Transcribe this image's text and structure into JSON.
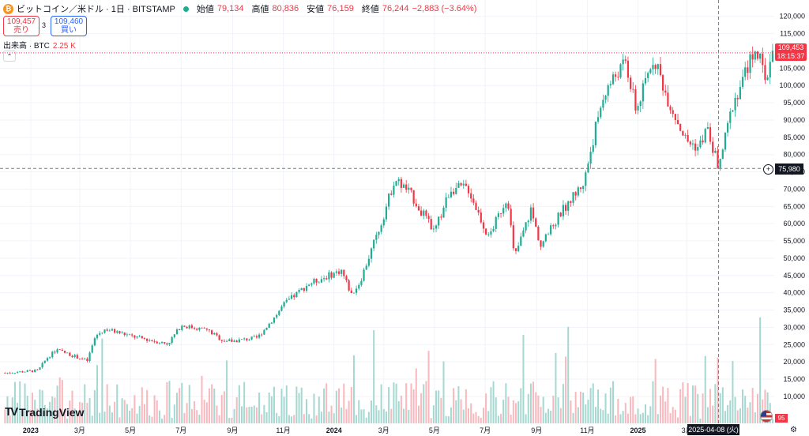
{
  "header": {
    "coin_icon": "bitcoin-icon",
    "coin_glyph": "₿",
    "title": "ビットコイン／米ドル · 1日 · BITSTAMP",
    "open_label": "始値",
    "open": "79,134",
    "high_label": "高値",
    "high": "80,836",
    "low_label": "安値",
    "low": "76,159",
    "close_label": "終値",
    "close": "76,244",
    "change": "−2,883 (−3.64%)"
  },
  "trade": {
    "sell_price": "109,457",
    "sell_label": "売り",
    "spread": "3",
    "buy_price": "109,460",
    "buy_label": "買い"
  },
  "volume_legend": {
    "label": "出来高 · BTC",
    "value": "2.25 K"
  },
  "collapse_glyph": "⌃",
  "logo": {
    "mark": "TV",
    "text": "TradingView"
  },
  "price_label": {
    "price": "109,453",
    "timer": "18:15:37"
  },
  "crosshair": {
    "price": "75,980",
    "date": "2025-04-08 (火)",
    "plus_glyph": "+"
  },
  "volume_badge": "95",
  "settings_glyph": "⚙",
  "chart_data": {
    "type": "candlestick",
    "y_ticks": [
      "120,000",
      "115,000",
      "110,000",
      "105,000",
      "100,000",
      "95,000",
      "90,000",
      "85,000",
      "80,000",
      "75,000",
      "70,000",
      "65,000",
      "60,000",
      "55,000",
      "50,000",
      "45,000",
      "40,000",
      "35,000",
      "30,000",
      "25,000",
      "20,000",
      "15,000",
      "10,000"
    ],
    "x_ticks": [
      "2023",
      "3月",
      "5月",
      "7月",
      "9月",
      "11月",
      "2024",
      "3月",
      "5月",
      "7月",
      "9月",
      "11月",
      "2025",
      "3月"
    ],
    "y_range": [
      7000,
      122000
    ],
    "series": [
      {
        "x": "2022-12",
        "close": 16800
      },
      {
        "x": "2023-01-10",
        "close": 17500
      },
      {
        "x": "2023-01-20",
        "close": 21000
      },
      {
        "x": "2023-02",
        "close": 23500
      },
      {
        "x": "2023-03-10",
        "close": 20300
      },
      {
        "x": "2023-03-20",
        "close": 27500
      },
      {
        "x": "2023-04",
        "close": 29500
      },
      {
        "x": "2023-05",
        "close": 27500
      },
      {
        "x": "2023-06-15",
        "close": 25200
      },
      {
        "x": "2023-07",
        "close": 30500
      },
      {
        "x": "2023-08",
        "close": 29300
      },
      {
        "x": "2023-08-20",
        "close": 26200
      },
      {
        "x": "2023-09",
        "close": 26000
      },
      {
        "x": "2023-10",
        "close": 27000
      },
      {
        "x": "2023-10-25",
        "close": 34000
      },
      {
        "x": "2023-11",
        "close": 36500
      },
      {
        "x": "2023-12",
        "close": 42500
      },
      {
        "x": "2024-01-10",
        "close": 46500
      },
      {
        "x": "2024-01-22",
        "close": 39500
      },
      {
        "x": "2024-02",
        "close": 43000
      },
      {
        "x": "2024-02-28",
        "close": 61000
      },
      {
        "x": "2024-03-14",
        "close": 73000
      },
      {
        "x": "2024-04",
        "close": 69000
      },
      {
        "x": "2024-05-01",
        "close": 57500
      },
      {
        "x": "2024-05-20",
        "close": 70000
      },
      {
        "x": "2024-06-10",
        "close": 70500
      },
      {
        "x": "2024-07-05",
        "close": 56000
      },
      {
        "x": "2024-07-28",
        "close": 68000
      },
      {
        "x": "2024-08-05",
        "close": 50000
      },
      {
        "x": "2024-08-25",
        "close": 64000
      },
      {
        "x": "2024-09-06",
        "close": 53500
      },
      {
        "x": "2024-10-01",
        "close": 63500
      },
      {
        "x": "2024-10-28",
        "close": 72000
      },
      {
        "x": "2024-11-12",
        "close": 89000
      },
      {
        "x": "2024-11-22",
        "close": 98000
      },
      {
        "x": "2024-12-05",
        "close": 103000
      },
      {
        "x": "2024-12-17",
        "close": 106500
      },
      {
        "x": "2024-12-30",
        "close": 92500
      },
      {
        "x": "2025-01-20",
        "close": 108500
      },
      {
        "x": "2025-02-05",
        "close": 96500
      },
      {
        "x": "2025-02-28",
        "close": 84000
      },
      {
        "x": "2025-03-15",
        "close": 82000
      },
      {
        "x": "2025-03-25",
        "close": 87500
      },
      {
        "x": "2025-04-08",
        "close": 76244
      },
      {
        "x": "2025-04-25",
        "close": 94500
      },
      {
        "x": "2025-05-10",
        "close": 103500
      },
      {
        "x": "2025-05-22",
        "close": 111000
      },
      {
        "x": "2025-06-05",
        "close": 102000
      },
      {
        "x": "2025-06-12",
        "close": 109453
      }
    ],
    "colors": {
      "up": "#22ab94",
      "down": "#f23645",
      "volume_up": "#a5d8d0",
      "volume_down": "#f9b8bd",
      "grid": "#f0f3fa"
    }
  }
}
